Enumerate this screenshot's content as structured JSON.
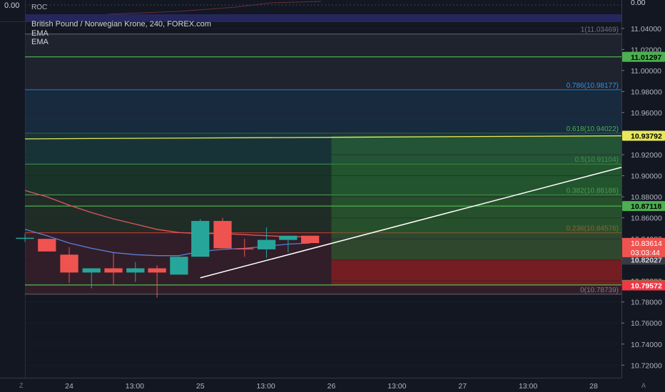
{
  "header": {
    "roc_label": "ROC",
    "roc_zero": "0.00",
    "symbol_title": "British Pound / Norwegian Krone, 240, FOREX.com",
    "ema1_label": "EMA",
    "ema2_label": "EMA"
  },
  "buttons": {
    "zoom_label": "Z",
    "auto_label": "A"
  },
  "colors": {
    "background": "#131722",
    "up": "#26a69a",
    "down": "#ef5350",
    "green_line": "#4caf50",
    "yellow_line": "#e8e85a",
    "ema_fast": "#5b7fd6",
    "ema_slow": "#e0555d"
  },
  "chart_data": {
    "type": "candlestick",
    "y_axis": {
      "ticks": [
        11.04,
        11.02,
        11.0,
        10.98,
        10.96,
        10.94,
        10.92,
        10.9,
        10.88,
        10.86,
        10.84,
        10.82,
        10.8,
        10.78,
        10.76,
        10.74,
        10.72
      ],
      "top_label": "0.00",
      "ylim": [
        10.708,
        11.046
      ]
    },
    "x_axis": {
      "ticks": [
        {
          "label": "24",
          "x": 1.0
        },
        {
          "label": "13:00",
          "x": 3.0
        },
        {
          "label": "25",
          "x": 5.0
        },
        {
          "label": "13:00",
          "x": 7.0
        },
        {
          "label": "26",
          "x": 9.0
        },
        {
          "label": "13:00",
          "x": 11.0
        },
        {
          "label": "27",
          "x": 13.0
        },
        {
          "label": "13:00",
          "x": 15.0
        },
        {
          "label": "28",
          "x": 17.0
        }
      ],
      "xlim": [
        -0.35,
        17.85
      ]
    },
    "candles": [
      {
        "x": -0.35,
        "o": 10.841,
        "h": 10.845,
        "l": 10.837,
        "c": 10.841
      },
      {
        "x": 0.32,
        "o": 10.84,
        "h": 10.84,
        "l": 10.828,
        "c": 10.828
      },
      {
        "x": 1.0,
        "o": 10.825,
        "h": 10.832,
        "l": 10.798,
        "c": 10.808
      },
      {
        "x": 1.68,
        "o": 10.808,
        "h": 10.812,
        "l": 10.793,
        "c": 10.812
      },
      {
        "x": 2.35,
        "o": 10.812,
        "h": 10.827,
        "l": 10.796,
        "c": 10.808
      },
      {
        "x": 3.02,
        "o": 10.808,
        "h": 10.818,
        "l": 10.799,
        "c": 10.812
      },
      {
        "x": 3.68,
        "o": 10.812,
        "h": 10.815,
        "l": 10.784,
        "c": 10.808
      },
      {
        "x": 4.35,
        "o": 10.806,
        "h": 10.823,
        "l": 10.806,
        "c": 10.823
      },
      {
        "x": 5.0,
        "o": 10.823,
        "h": 10.859,
        "l": 10.823,
        "c": 10.857
      },
      {
        "x": 5.68,
        "o": 10.857,
        "h": 10.86,
        "l": 10.831,
        "c": 10.831
      },
      {
        "x": 6.35,
        "o": 10.831,
        "h": 10.84,
        "l": 10.823,
        "c": 10.83
      },
      {
        "x": 7.02,
        "o": 10.83,
        "h": 10.851,
        "l": 10.822,
        "c": 10.839
      },
      {
        "x": 7.68,
        "o": 10.839,
        "h": 10.843,
        "l": 10.827,
        "c": 10.843
      },
      {
        "x": 8.35,
        "o": 10.843,
        "h": 10.843,
        "l": 10.836,
        "c": 10.836
      }
    ],
    "ema_fast": {
      "x": [
        -0.35,
        0.32,
        1.0,
        1.68,
        2.35,
        3.02,
        3.68,
        4.35,
        5.0,
        5.68,
        6.35,
        7.02,
        7.68,
        8.35
      ],
      "y": [
        10.849,
        10.843,
        10.836,
        10.831,
        10.827,
        10.825,
        10.824,
        10.824,
        10.828,
        10.83,
        10.831,
        10.833,
        10.835,
        10.836
      ]
    },
    "ema_slow": {
      "x": [
        -0.35,
        0.32,
        1.0,
        1.68,
        2.35,
        3.02,
        3.68,
        4.35,
        5.0,
        5.68,
        6.35,
        7.02,
        7.68,
        8.35
      ],
      "y": [
        10.886,
        10.88,
        10.872,
        10.865,
        10.859,
        10.854,
        10.849,
        10.846,
        10.845,
        10.845,
        10.844,
        10.843,
        10.842,
        10.842
      ]
    },
    "fib_levels": [
      {
        "label": "1(11.03469)",
        "price": 11.03469,
        "color": "#787b86"
      },
      {
        "label": "0.786(10.98177)",
        "price": 10.98177,
        "color": "#2196f3"
      },
      {
        "label": "0.618(10.94022)",
        "price": 10.94022,
        "color": "#4caf50"
      },
      {
        "label": "0.5(10.91104)",
        "price": 10.91104,
        "color": "#4caf50"
      },
      {
        "label": "0.382(10.88186)",
        "price": 10.88186,
        "color": "#66bb6a"
      },
      {
        "label": "0.236(10.84576)",
        "price": 10.84576,
        "color": "#f44336"
      },
      {
        "label": "0(10.78739)",
        "price": 10.78739,
        "color": "#787b86"
      }
    ],
    "horizontal_lines": [
      {
        "price": 11.01297,
        "label": "11.01297",
        "color": "#4caf50"
      },
      {
        "price": 10.87118,
        "label": "10.87118",
        "color": "#4caf50"
      },
      {
        "price": 10.7962,
        "label": "10.79620",
        "color": "#4caf50"
      }
    ],
    "yellow_trend": {
      "x1": -0.35,
      "y1": 10.935,
      "x2": 17.85,
      "y2": 10.93792,
      "label": "10.93792"
    },
    "white_trend": {
      "x1": 5.0,
      "y1": 10.803,
      "x2": 17.85,
      "y2": 10.908
    },
    "position": {
      "x_start": 9.0,
      "x_end": 17.85,
      "entry": 10.82027,
      "target": 10.93792,
      "stop": 10.79572,
      "stop_label": "10.79572",
      "entry_label": "10.82027"
    },
    "price_labels": {
      "last_price": "10.83614",
      "countdown": "03:03:44",
      "last_price_value": 10.83614
    }
  }
}
